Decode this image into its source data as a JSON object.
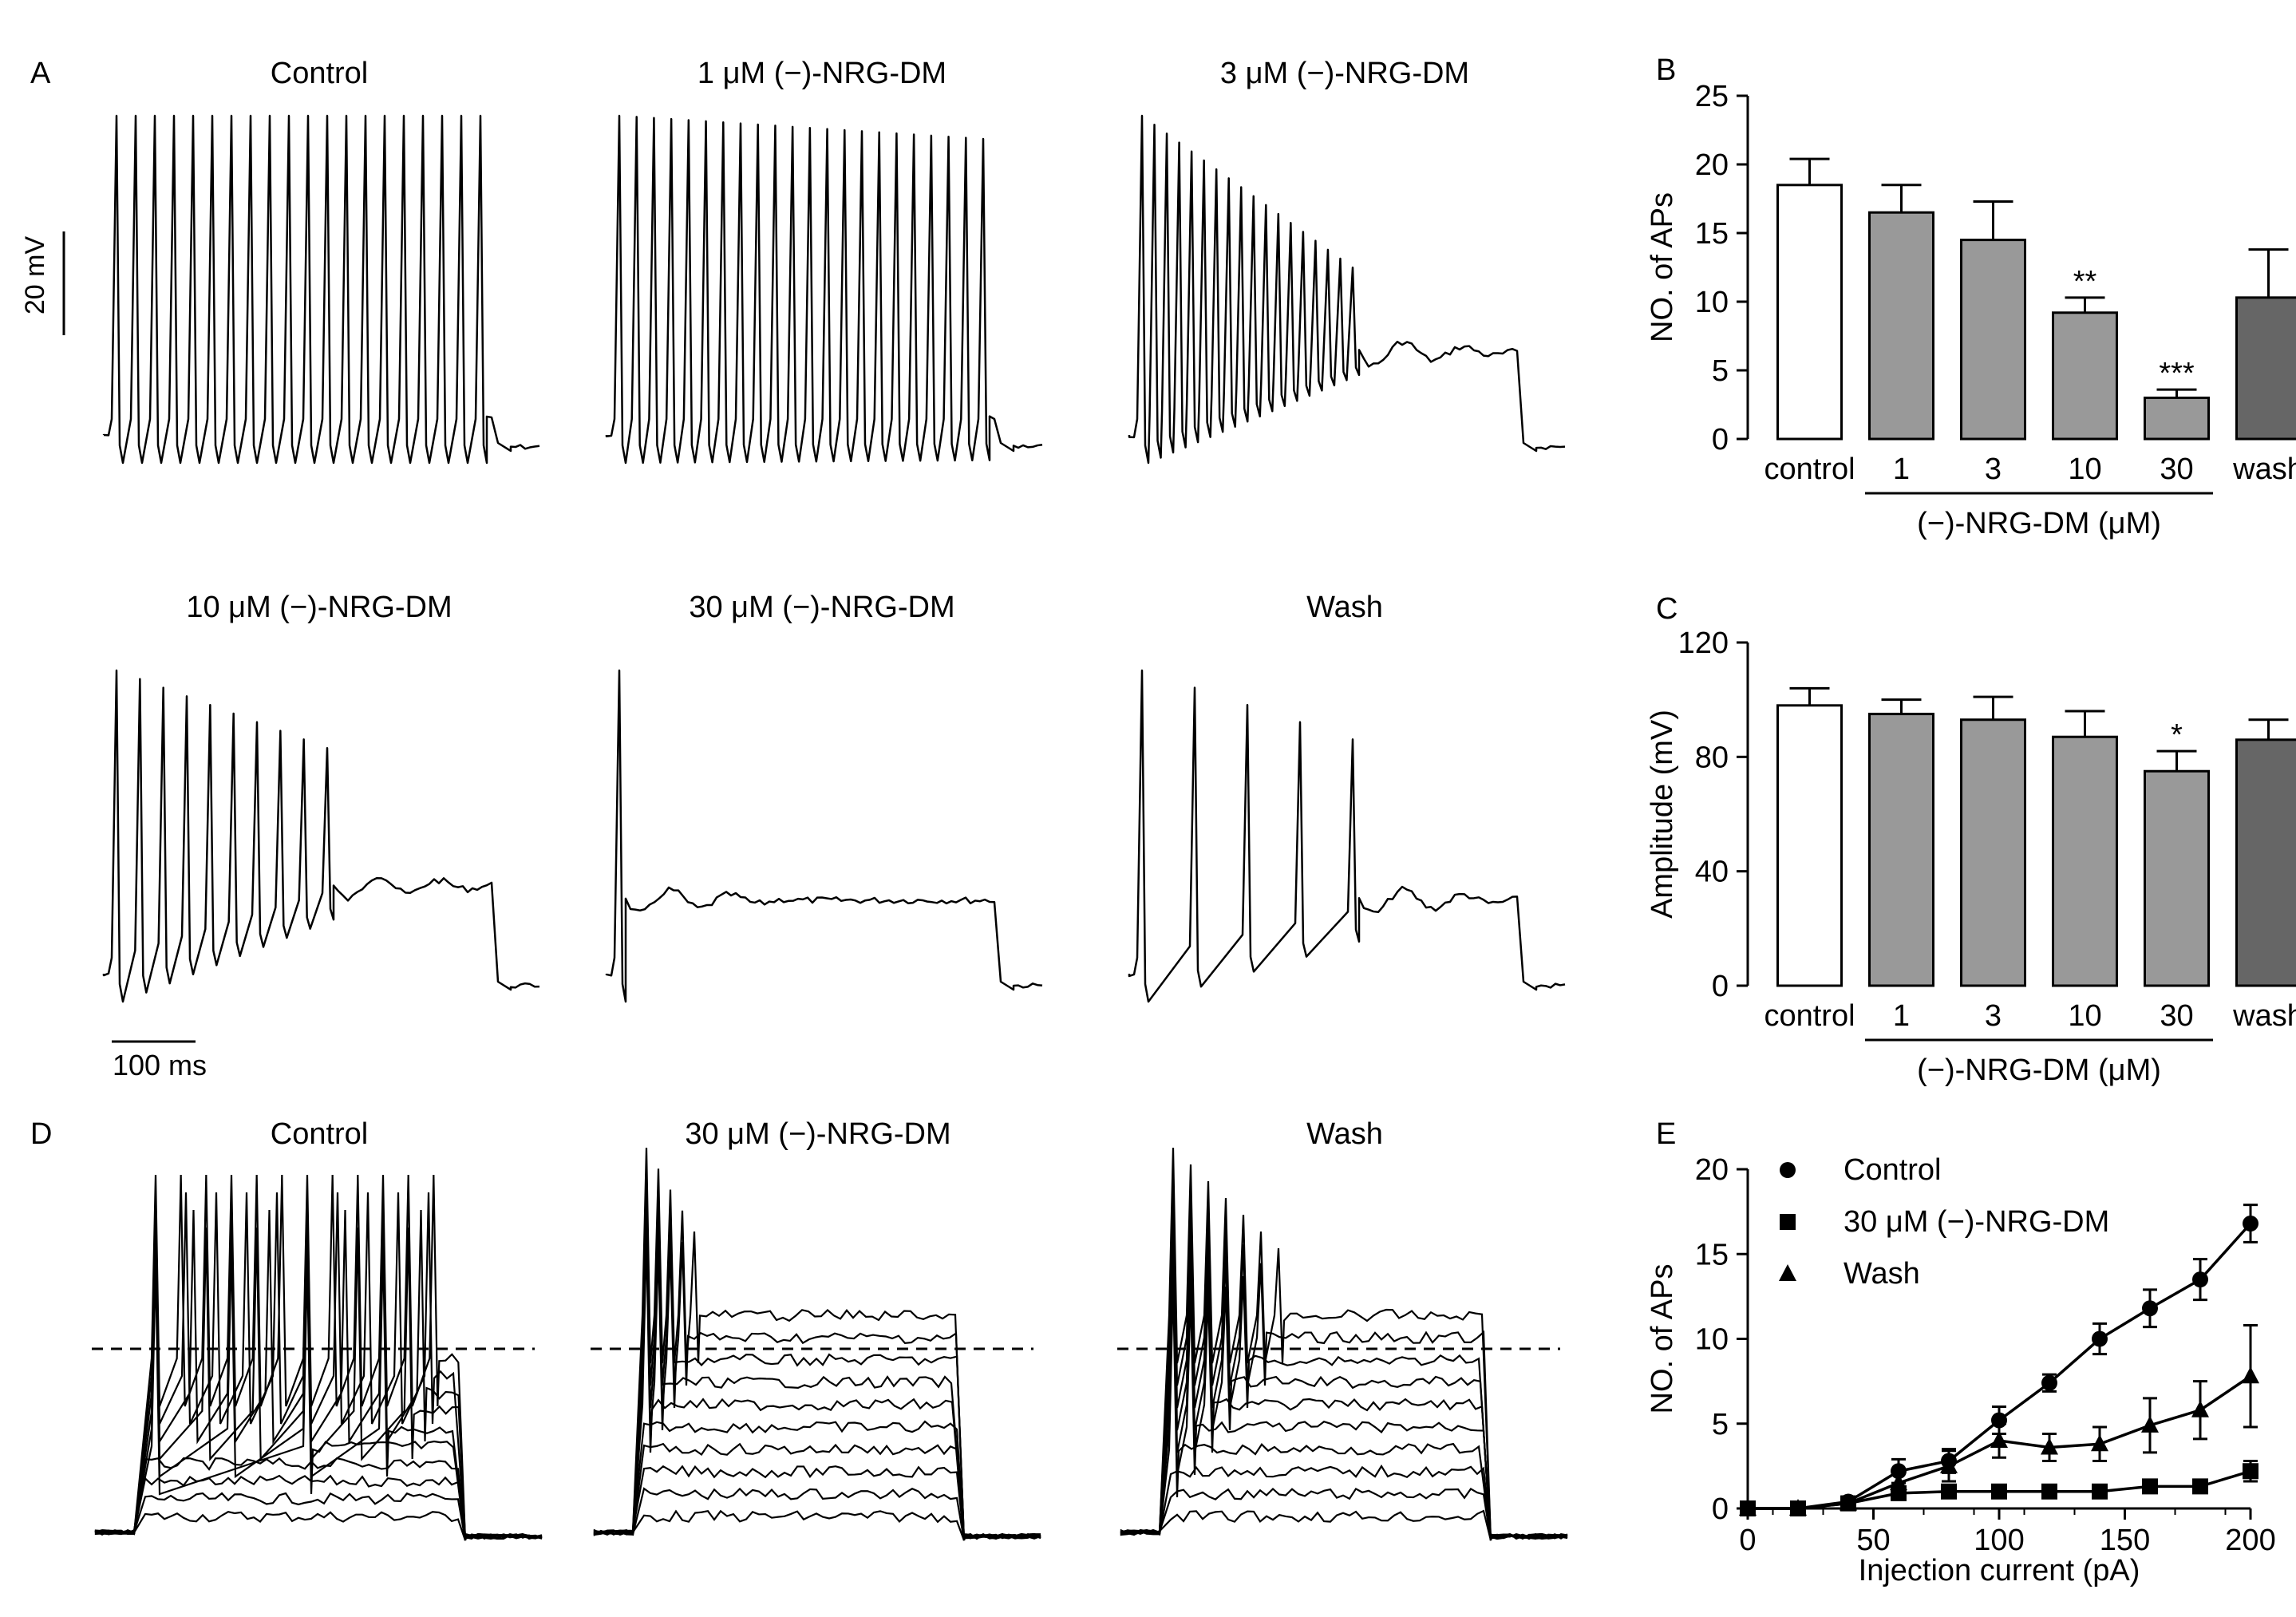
{
  "panel_a": {
    "letter": "A",
    "traces": [
      {
        "title": "Control",
        "spikes": 20,
        "decay": 0.0,
        "drift": 0.0,
        "plateau": 0
      },
      {
        "title": "1 μM (−)-NRG-DM",
        "spikes": 22,
        "decay": 0.08,
        "drift": 0.0,
        "plateau": 0
      },
      {
        "title": "3 μM (−)-NRG-DM",
        "spikes": 18,
        "decay": 0.75,
        "drift": 0.22,
        "plateau": 2
      },
      {
        "title": "10 μM (−)-NRG-DM",
        "spikes": 10,
        "decay": 0.55,
        "drift": 0.25,
        "plateau": 4
      },
      {
        "title": "30 μM (−)-NRG-DM",
        "spikes": 1,
        "decay": 0.0,
        "drift": 0.2,
        "plateau": 2
      },
      {
        "title": "Wash",
        "spikes": 5,
        "decay": 0.5,
        "drift": 0.2,
        "plateau": 2
      }
    ],
    "scale_v": "20 mV",
    "scale_t": "100 ms"
  },
  "panel_d": {
    "letter": "D",
    "traces": [
      {
        "title": "Control",
        "mode": "control"
      },
      {
        "title": "30 μM (−)-NRG-DM",
        "mode": "drug"
      },
      {
        "title": "Wash",
        "mode": "wash"
      }
    ]
  },
  "chart_data": [
    {
      "id": "B",
      "type": "bar",
      "letter": "B",
      "categories": [
        "control",
        "1",
        "3",
        "10",
        "30",
        "wash"
      ],
      "values": [
        18.5,
        16.5,
        14.5,
        9.2,
        3.0,
        10.3
      ],
      "errors": [
        1.9,
        2.0,
        2.8,
        1.1,
        0.6,
        3.5
      ],
      "significance": [
        "",
        "",
        "",
        "**",
        "***",
        ""
      ],
      "colors": [
        "#ffffff",
        "#999999",
        "#999999",
        "#999999",
        "#999999",
        "#666666"
      ],
      "ylabel": "NO. of APs",
      "ylim": [
        0,
        25
      ],
      "yticks": [
        "0",
        "5",
        "10",
        "15",
        "20",
        "25"
      ],
      "group_label": "(−)-NRG-DM (μM)"
    },
    {
      "id": "C",
      "type": "bar",
      "letter": "C",
      "categories": [
        "control",
        "1",
        "3",
        "10",
        "30",
        "wash"
      ],
      "values": [
        98,
        95,
        93,
        87,
        75,
        86
      ],
      "errors": [
        6,
        5,
        8,
        9,
        7,
        7
      ],
      "significance": [
        "",
        "",
        "",
        "",
        "*",
        ""
      ],
      "colors": [
        "#ffffff",
        "#999999",
        "#999999",
        "#999999",
        "#999999",
        "#666666"
      ],
      "ylabel": "Amplitude (mV)",
      "ylim": [
        0,
        120
      ],
      "yticks": [
        "0",
        "40",
        "80",
        "120"
      ],
      "group_label": "(−)-NRG-DM (μM)"
    },
    {
      "id": "E",
      "type": "line",
      "letter": "E",
      "xlabel": "Injection current (pA)",
      "ylabel": "NO. of APs",
      "xlim": [
        0,
        200
      ],
      "ylim": [
        0,
        20
      ],
      "xticks": [
        "0",
        "50",
        "100",
        "150",
        "200"
      ],
      "yticks": [
        "0",
        "5",
        "10",
        "15",
        "20"
      ],
      "x": [
        0,
        20,
        40,
        60,
        80,
        100,
        120,
        140,
        160,
        180,
        200
      ],
      "series": [
        {
          "name": "Control",
          "marker": "circle",
          "values": [
            0,
            0,
            0.4,
            2.2,
            2.8,
            5.2,
            7.4,
            10.0,
            11.8,
            13.5,
            16.8
          ],
          "errors": [
            0,
            0,
            0.3,
            0.7,
            0.7,
            0.8,
            0.5,
            0.9,
            1.1,
            1.2,
            1.1
          ]
        },
        {
          "name": "30 μM (−)-NRG-DM",
          "marker": "square",
          "values": [
            0,
            0,
            0.3,
            0.9,
            1.0,
            1.0,
            1.0,
            1.0,
            1.3,
            1.3,
            2.2
          ],
          "errors": [
            0,
            0,
            0.2,
            0.3,
            0.2,
            0.2,
            0.2,
            0.2,
            0.3,
            0.3,
            0.6
          ]
        },
        {
          "name": "Wash",
          "marker": "triangle",
          "values": [
            0,
            0,
            0.3,
            1.5,
            2.5,
            4.0,
            3.6,
            3.8,
            4.9,
            5.8,
            7.8
          ],
          "errors": [
            0,
            0,
            0.3,
            0.8,
            0.9,
            1.0,
            0.8,
            1.0,
            1.6,
            1.7,
            3.0
          ]
        }
      ]
    }
  ]
}
